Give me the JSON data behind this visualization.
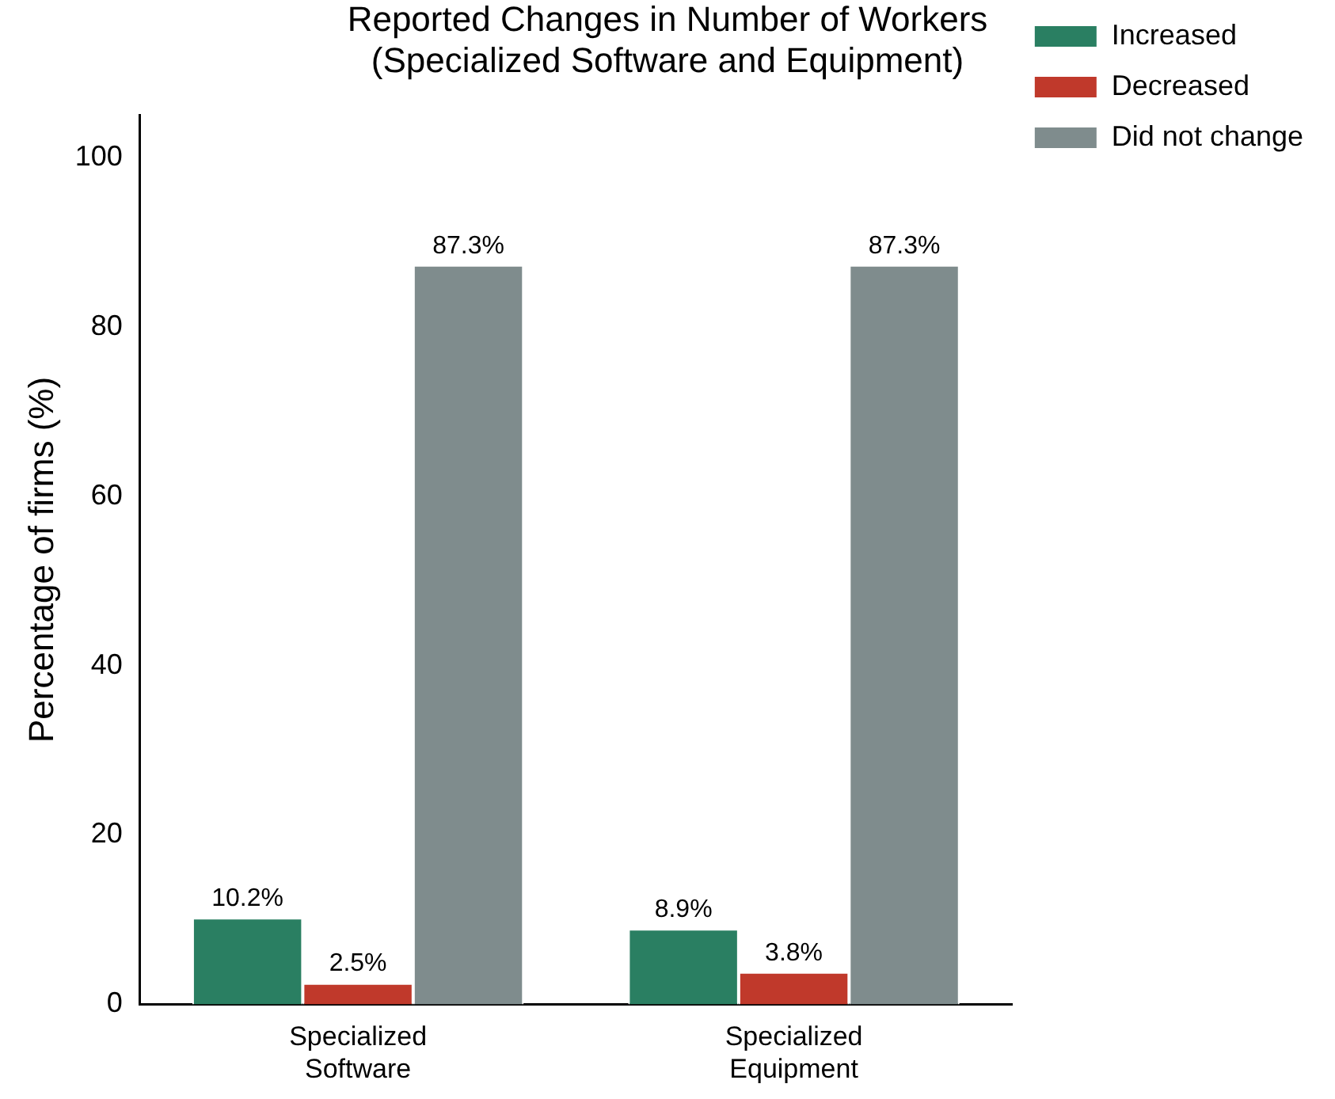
{
  "chart_data": {
    "type": "bar",
    "title": "Reported Changes in Number of Workers\n(Specialized Software and Equipment)",
    "ylabel": "Percentage of firms (%)",
    "categories": [
      "Specialized Software",
      "Specialized Equipment"
    ],
    "series": [
      {
        "name": "Increased",
        "color": "#2a7f62",
        "values": [
          10.2,
          8.9
        ],
        "value_labels": [
          "10.2%",
          "8.9%"
        ]
      },
      {
        "name": "Decreased",
        "color": "#c0392b",
        "values": [
          2.5,
          3.8
        ],
        "value_labels": [
          "2.5%",
          "3.8%"
        ]
      },
      {
        "name": "Did not change",
        "color": "#7f8c8d",
        "values": [
          87.3,
          87.3
        ],
        "value_labels": [
          "87.3%",
          "87.3%"
        ]
      }
    ],
    "ylim": [
      0,
      105
    ],
    "yticks": [
      0,
      20,
      40,
      60,
      80,
      100
    ],
    "grid": false,
    "legend": "top right"
  }
}
